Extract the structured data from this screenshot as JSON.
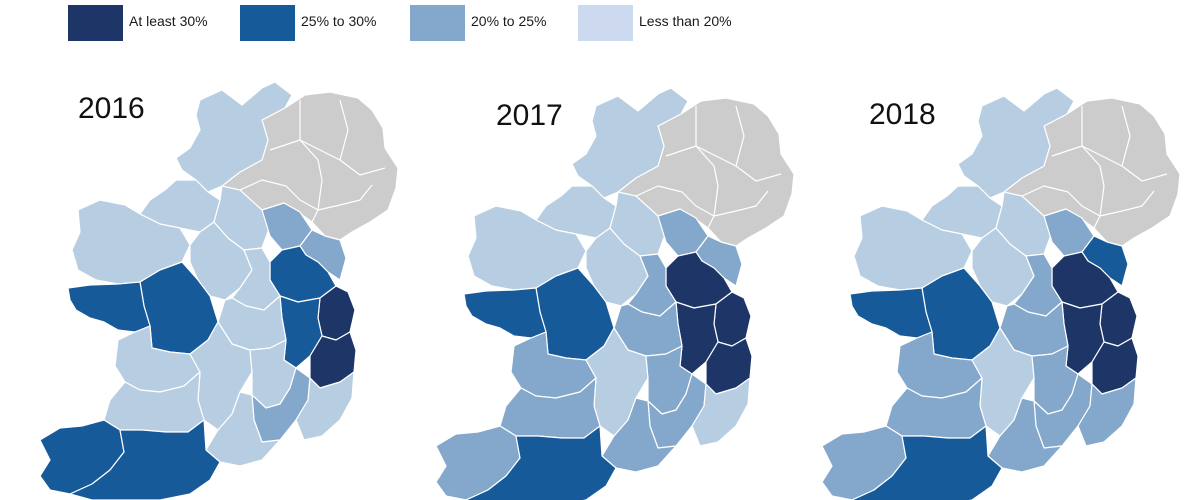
{
  "legend": [
    {
      "label": "At least 30%",
      "color": "#1d3567"
    },
    {
      "label": "25% to 30%",
      "color": "#165a9a"
    },
    {
      "label": "20% to 25%",
      "color": "#84a8cc"
    },
    {
      "label": "Less than 20%",
      "color": "#cdd9ee"
    }
  ],
  "colors": {
    "ni_no_data": "#cccccc",
    "lowest_shade_on_map": "#b7cde2"
  },
  "maps": [
    {
      "year": "2016"
    },
    {
      "year": "2017"
    },
    {
      "year": "2018"
    }
  ]
}
